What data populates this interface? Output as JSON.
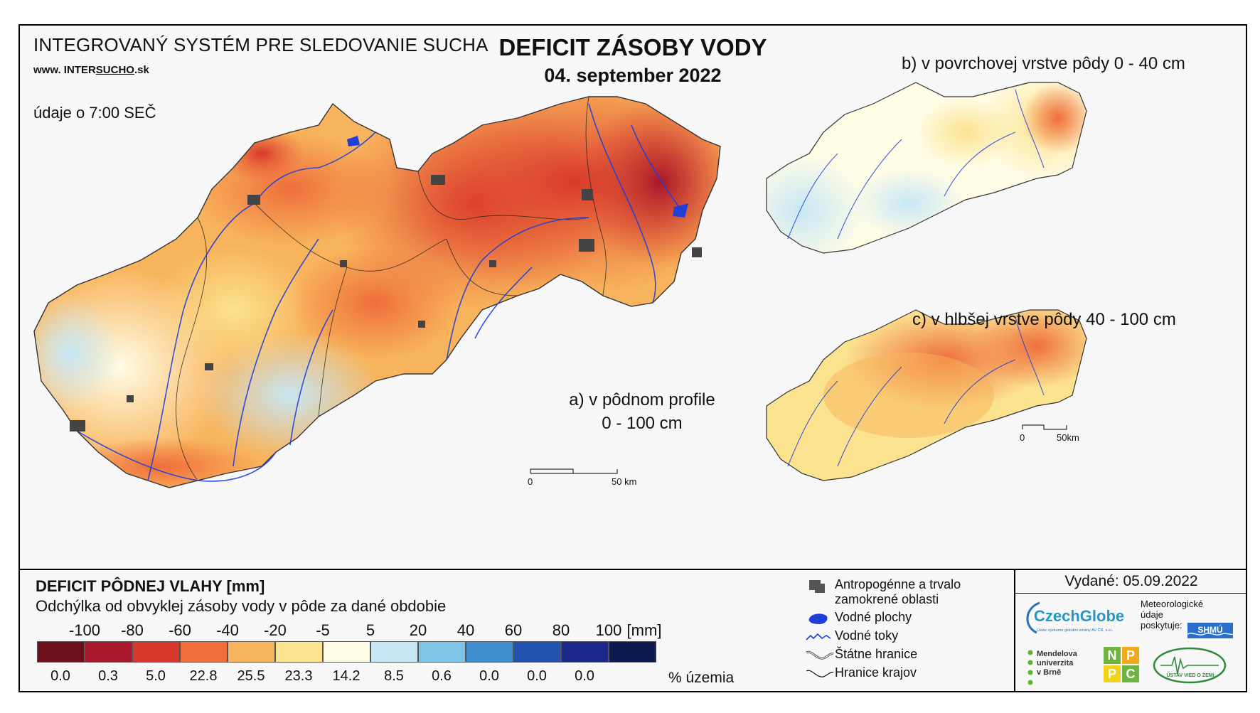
{
  "header": {
    "system_title": "INTEGROVANÝ SYSTÉM PRE SLEDOVANIE SUCHA",
    "website_prefix": "www.",
    "website_brand_a": "INTER",
    "website_brand_b": "SUCHO",
    "website_suffix": ".sk",
    "time_note": "údaje o 7:00 SEČ",
    "main_title": "DEFICIT ZÁSOBY VODY",
    "date_title": "04. september 2022"
  },
  "maps": {
    "a_label_line1": "a) v pôdnom profile",
    "a_label_line2": "0 - 100 cm",
    "b_label": "b) v povrchovej vrstve pôdy 0 - 40 cm",
    "c_label": "c) v hlbšej vrstve pôdy 40 - 100 cm",
    "scale_zero": "0",
    "scale_main": "50 km",
    "scale_small": "50km"
  },
  "legend": {
    "title": "DEFICIT PÔDNEJ VLAHY [mm]",
    "subtitle": "Odchýlka od obvyklej zásoby vody v pôde za dané obdobie",
    "scale_labels": [
      "-100",
      "-80",
      "-60",
      "-40",
      "-20",
      "-5",
      "5",
      "20",
      "40",
      "60",
      "80",
      "100"
    ],
    "unit": "[mm]",
    "colors": [
      "#6e0f1c",
      "#a8172a",
      "#d8382b",
      "#ef6e3c",
      "#f8b45c",
      "#fbe28e",
      "#fffce6",
      "#c7e6f4",
      "#7ec4e6",
      "#3f8fd0",
      "#2351b0",
      "#1b2a8a",
      "#0c1a4f"
    ],
    "percent_values": [
      "0.0",
      "0.3",
      "5.0",
      "22.8",
      "25.5",
      "23.3",
      "14.2",
      "8.5",
      "0.6",
      "0.0",
      "0.0",
      "0.0"
    ],
    "percent_unit": "% územia"
  },
  "symbols": {
    "urban": "Antropogénne a trvalo zamokrené oblasti",
    "water_bodies": "Vodné plochy",
    "rivers": "Vodné toky",
    "state_borders": "Štátne hranice",
    "region_borders": "Hranice krajov"
  },
  "issuer": {
    "issued": "Vydané: 05.09.2022",
    "czechglobe": "CzechGlobe",
    "czechglobe_sub": "Ústav výzkumu globální změny AV ČR, v.v.i.",
    "met_line1": "Meteorologické",
    "met_line2": "údaje",
    "met_line3": "poskytuje:",
    "shmu": "SHMÚ",
    "mendel_line1": "Mendelova",
    "mendel_line2": "univerzita",
    "mendel_line3": "v Brně",
    "nppc": [
      "N",
      "P",
      "P",
      "C"
    ],
    "uvz": "ÚSTAV VIED O ZEMI"
  }
}
